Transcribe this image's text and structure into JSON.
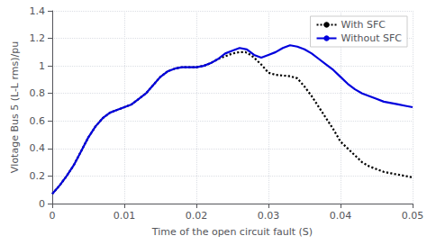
{
  "chart_data": {
    "type": "line",
    "title": "",
    "xlabel": "Time of the open circuit fault (S)",
    "ylabel": "Vlotage Bus 5 (L-L rms)/pu",
    "xlim": [
      0,
      0.05
    ],
    "ylim": [
      0,
      1.4
    ],
    "xticks": [
      0,
      0.01,
      0.02,
      0.03,
      0.04,
      0.05
    ],
    "yticks": [
      0,
      0.2,
      0.4,
      0.6,
      0.8,
      1,
      1.2,
      1.4
    ],
    "grid": true,
    "legend": "upper right",
    "series": [
      {
        "name": "With SFC",
        "color": "#000000",
        "line_style": "dotted",
        "x": [
          0,
          0.001,
          0.002,
          0.003,
          0.004,
          0.005,
          0.006,
          0.007,
          0.008,
          0.009,
          0.01,
          0.011,
          0.012,
          0.013,
          0.014,
          0.015,
          0.016,
          0.017,
          0.018,
          0.019,
          0.02,
          0.021,
          0.022,
          0.023,
          0.024,
          0.025,
          0.026,
          0.0268,
          0.0275,
          0.028,
          0.029,
          0.03,
          0.031,
          0.032,
          0.033,
          0.034,
          0.035,
          0.036,
          0.037,
          0.038,
          0.039,
          0.04,
          0.041,
          0.042,
          0.043,
          0.044,
          0.045,
          0.046,
          0.047,
          0.048,
          0.049,
          0.05
        ],
        "values": [
          0.07,
          0.13,
          0.2,
          0.28,
          0.38,
          0.48,
          0.56,
          0.62,
          0.66,
          0.68,
          0.7,
          0.72,
          0.76,
          0.8,
          0.86,
          0.92,
          0.96,
          0.98,
          0.99,
          0.99,
          0.99,
          1.0,
          1.02,
          1.05,
          1.07,
          1.09,
          1.1,
          1.1,
          1.08,
          1.06,
          1.01,
          0.95,
          0.935,
          0.93,
          0.925,
          0.91,
          0.85,
          0.78,
          0.7,
          0.62,
          0.54,
          0.45,
          0.4,
          0.35,
          0.3,
          0.27,
          0.25,
          0.23,
          0.22,
          0.21,
          0.2,
          0.19
        ]
      },
      {
        "name": "Without SFC",
        "color": "#0000DD",
        "line_style": "solid",
        "x": [
          0,
          0.001,
          0.002,
          0.003,
          0.004,
          0.005,
          0.006,
          0.007,
          0.008,
          0.009,
          0.01,
          0.011,
          0.012,
          0.013,
          0.014,
          0.015,
          0.016,
          0.017,
          0.018,
          0.019,
          0.02,
          0.021,
          0.022,
          0.023,
          0.024,
          0.025,
          0.026,
          0.027,
          0.028,
          0.029,
          0.03,
          0.031,
          0.032,
          0.033,
          0.034,
          0.035,
          0.036,
          0.037,
          0.038,
          0.039,
          0.04,
          0.041,
          0.042,
          0.043,
          0.044,
          0.045,
          0.046,
          0.047,
          0.048,
          0.049,
          0.05
        ],
        "values": [
          0.07,
          0.13,
          0.2,
          0.28,
          0.38,
          0.48,
          0.56,
          0.62,
          0.66,
          0.68,
          0.7,
          0.72,
          0.76,
          0.8,
          0.86,
          0.92,
          0.96,
          0.98,
          0.99,
          0.99,
          0.99,
          1.0,
          1.02,
          1.05,
          1.09,
          1.11,
          1.13,
          1.12,
          1.08,
          1.06,
          1.08,
          1.1,
          1.13,
          1.15,
          1.14,
          1.12,
          1.09,
          1.05,
          1.01,
          0.97,
          0.92,
          0.87,
          0.83,
          0.8,
          0.78,
          0.76,
          0.74,
          0.73,
          0.72,
          0.71,
          0.7
        ]
      }
    ]
  }
}
